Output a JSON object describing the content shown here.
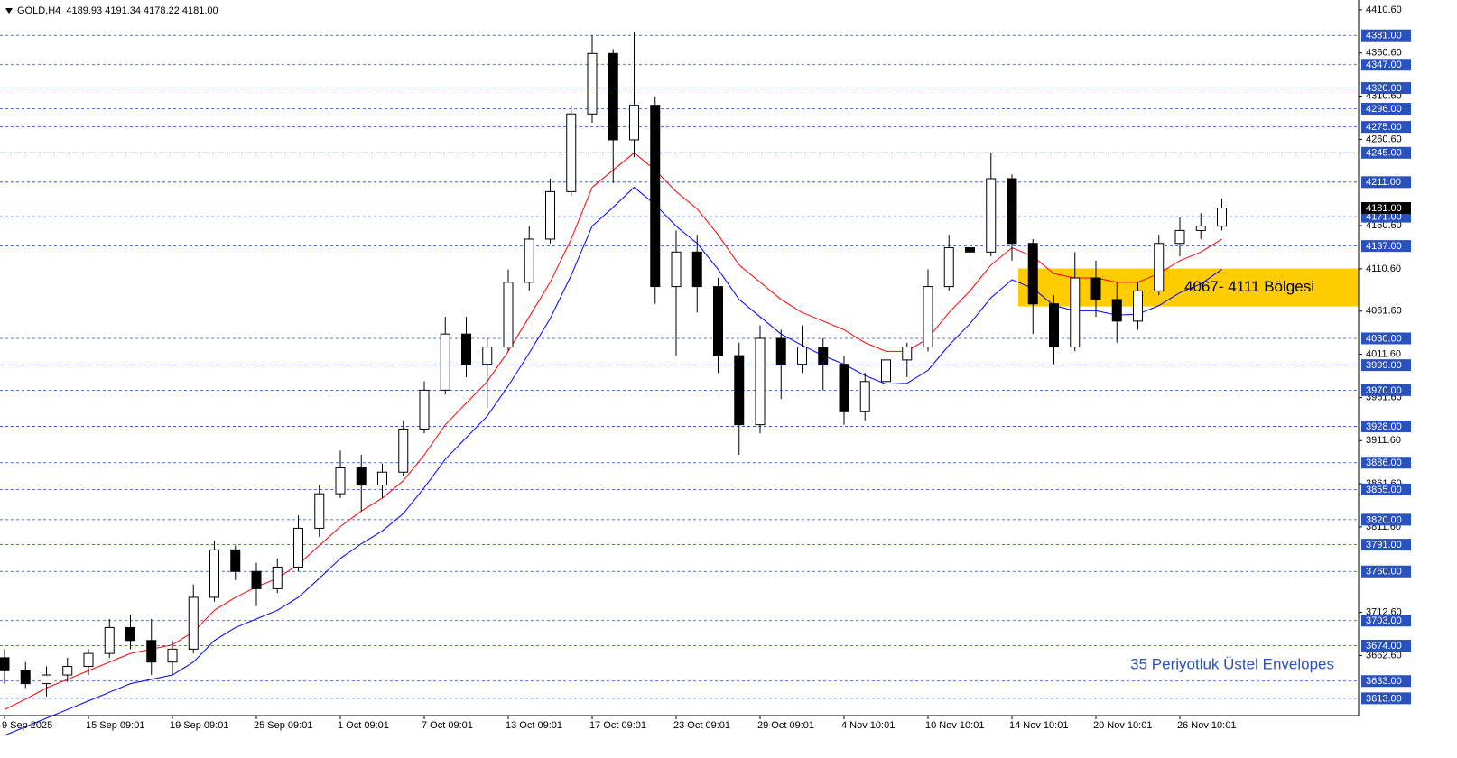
{
  "chart_data": {
    "type": "candlestick",
    "title": "GOLD,H4  4189.93 4191.34 4178.22 4181.00",
    "categories": [
      "9 Sep 2025",
      null,
      null,
      null,
      "15 Sep 09:01",
      null,
      null,
      null,
      "19 Sep 09:01",
      null,
      null,
      null,
      "25 Sep 09:01",
      null,
      null,
      null,
      "1 Oct 09:01",
      null,
      null,
      null,
      "7 Oct 09:01",
      null,
      null,
      null,
      "13 Oct 09:01",
      null,
      null,
      null,
      "17 Oct 09:01",
      null,
      null,
      null,
      "23 Oct 09:01",
      null,
      null,
      null,
      "29 Oct 09:01",
      null,
      null,
      null,
      "4 Nov 10:01",
      null,
      null,
      null,
      "10 Nov 10:01",
      null,
      null,
      null,
      "14 Nov 10:01",
      null,
      null,
      null,
      "20 Nov 10:01",
      null,
      null,
      null,
      "26 Nov 10:01",
      null,
      null
    ],
    "open": [
      3660,
      3645,
      3630,
      3640,
      3650,
      3665,
      3695,
      3680,
      3655,
      3670,
      3730,
      3785,
      3760,
      3740,
      3765,
      3810,
      3850,
      3880,
      3860,
      3875,
      3925,
      3970,
      4035,
      4000,
      4020,
      4095,
      4145,
      4200,
      4290,
      4360,
      4260,
      4300,
      4090,
      4130,
      4090,
      4010,
      3930,
      4030,
      4000,
      4020,
      4000,
      3945,
      3980,
      4005,
      4020,
      4090,
      4135,
      4130,
      4215,
      4140,
      4070,
      4020,
      4100,
      4075,
      4050,
      4085,
      4140,
      4155,
      4160
    ],
    "high": [
      3670,
      3655,
      3650,
      3660,
      3670,
      3705,
      3710,
      3705,
      3680,
      3745,
      3795,
      3790,
      3770,
      3775,
      3825,
      3860,
      3900,
      3895,
      3885,
      3935,
      3980,
      4055,
      4055,
      4030,
      4110,
      4160,
      4215,
      4300,
      4381,
      4365,
      4385,
      4310,
      4155,
      4150,
      4100,
      4025,
      4045,
      4040,
      4045,
      4030,
      4010,
      3990,
      4020,
      4025,
      4110,
      4150,
      4145,
      4245,
      4220,
      4145,
      4080,
      4130,
      4120,
      4095,
      4095,
      4150,
      4170,
      4175,
      4192
    ],
    "low": [
      3630,
      3625,
      3615,
      3632,
      3640,
      3660,
      3670,
      3640,
      3640,
      3665,
      3725,
      3750,
      3720,
      3735,
      3760,
      3800,
      3845,
      3830,
      3845,
      3870,
      3920,
      3965,
      3985,
      3950,
      4015,
      4085,
      4140,
      4195,
      4280,
      4210,
      4240,
      4070,
      4010,
      4060,
      3990,
      3895,
      3920,
      3960,
      3990,
      3970,
      3930,
      3935,
      3970,
      3985,
      4015,
      4085,
      4110,
      4125,
      4120,
      4035,
      4000,
      4015,
      4055,
      4025,
      4040,
      4080,
      4125,
      4145,
      4155
    ],
    "close": [
      3645,
      3630,
      3640,
      3650,
      3665,
      3695,
      3680,
      3655,
      3670,
      3730,
      3785,
      3760,
      3740,
      3765,
      3810,
      3850,
      3880,
      3860,
      3875,
      3925,
      3970,
      4035,
      4000,
      4020,
      4095,
      4145,
      4200,
      4290,
      4360,
      4260,
      4300,
      4090,
      4130,
      4090,
      4010,
      3930,
      4030,
      4000,
      4020,
      4000,
      3945,
      3980,
      4005,
      4020,
      4090,
      4135,
      4130,
      4215,
      4140,
      4070,
      4020,
      4100,
      4075,
      4050,
      4085,
      4140,
      4155,
      4160,
      4181
    ],
    "envelopes": [
      {
        "color": "#ff0000",
        "values": [
          3600,
          3612,
          3625,
          3635,
          3645,
          3655,
          3665,
          3670,
          3675,
          3690,
          3715,
          3730,
          3742,
          3752,
          3768,
          3790,
          3812,
          3830,
          3845,
          3865,
          3895,
          3930,
          3955,
          3980,
          4015,
          4055,
          4095,
          4145,
          4205,
          4225,
          4245,
          4225,
          4200,
          4180,
          4150,
          4115,
          4095,
          4075,
          4060,
          4050,
          4040,
          4025,
          4015,
          4015,
          4030,
          4060,
          4085,
          4115,
          4135,
          4125,
          4105,
          4100,
          4100,
          4095,
          4095,
          4105,
          4120,
          4130,
          4145
        ]
      },
      {
        "color": "#0000ff",
        "values": [
          3570,
          3580,
          3590,
          3600,
          3610,
          3620,
          3630,
          3635,
          3640,
          3655,
          3680,
          3695,
          3705,
          3715,
          3730,
          3752,
          3775,
          3792,
          3807,
          3827,
          3857,
          3890,
          3915,
          3940,
          3975,
          4013,
          4053,
          4103,
          4160,
          4182,
          4205,
          4185,
          4160,
          4140,
          4110,
          4075,
          4055,
          4035,
          4022,
          4010,
          4000,
          3987,
          3977,
          3978,
          3993,
          4022,
          4047,
          4077,
          4098,
          4088,
          4068,
          4062,
          4062,
          4057,
          4058,
          4068,
          4083,
          4093,
          4110
        ]
      }
    ],
    "ylim": [
      3593,
      4422
    ],
    "yticks": [
      {
        "value": 4410.6,
        "label": "4410.60"
      },
      {
        "value": 4360.6,
        "label": "4360.60"
      },
      {
        "value": 4310.6,
        "label": "4310.60"
      },
      {
        "value": 4260.6,
        "label": "4260.60"
      },
      {
        "value": 4160.6,
        "label": "4160.60"
      },
      {
        "value": 4110.6,
        "label": "4110.60"
      },
      {
        "value": 4061.6,
        "label": "4061.60"
      },
      {
        "value": 4011.6,
        "label": "4011.60"
      },
      {
        "value": 3961.6,
        "label": "3961.60"
      },
      {
        "value": 3911.6,
        "label": "3911.60"
      },
      {
        "value": 3861.6,
        "label": "3861.60"
      },
      {
        "value": 3811.6,
        "label": "3811.60"
      },
      {
        "value": 3712.6,
        "label": "3712.60"
      },
      {
        "value": 3662.6,
        "label": "3662.60"
      }
    ],
    "levels": [
      {
        "value": 4381,
        "label": "4381.00"
      },
      {
        "value": 4347,
        "label": "4347.00"
      },
      {
        "value": 4320,
        "label": "4320.00"
      },
      {
        "value": 4296,
        "label": "4296.00"
      },
      {
        "value": 4275,
        "label": "4275.00"
      },
      {
        "value": 4245,
        "label": "4245.00"
      },
      {
        "value": 4211,
        "label": "4211.00"
      },
      {
        "value": 4171,
        "label": "4171.00"
      },
      {
        "value": 4137,
        "label": "4137.00"
      },
      {
        "value": 4030,
        "label": "4030.00"
      },
      {
        "value": 3999,
        "label": "3999.00"
      },
      {
        "value": 3970,
        "label": "3970.00"
      },
      {
        "value": 3928,
        "label": "3928.00"
      },
      {
        "value": 3886,
        "label": "3886.00"
      },
      {
        "value": 3855,
        "label": "3855.00"
      },
      {
        "value": 3820,
        "label": "3820.00"
      },
      {
        "value": 3791,
        "label": "3791.00"
      },
      {
        "value": 3760,
        "label": "3760.00"
      },
      {
        "value": 3703,
        "label": "3703.00"
      },
      {
        "value": 3674,
        "label": "3674.00"
      },
      {
        "value": 3633,
        "label": "3633.00"
      },
      {
        "value": 3613,
        "label": "3613.00"
      }
    ],
    "current_price": {
      "value": 4181,
      "label": "4181.00"
    },
    "zone": {
      "from": 4067,
      "to": 4111,
      "label": "4067- 4111 Bölgesi",
      "color": "#ffcc00"
    },
    "annotation": "35 Periyotluk Üstel Envelopes"
  }
}
